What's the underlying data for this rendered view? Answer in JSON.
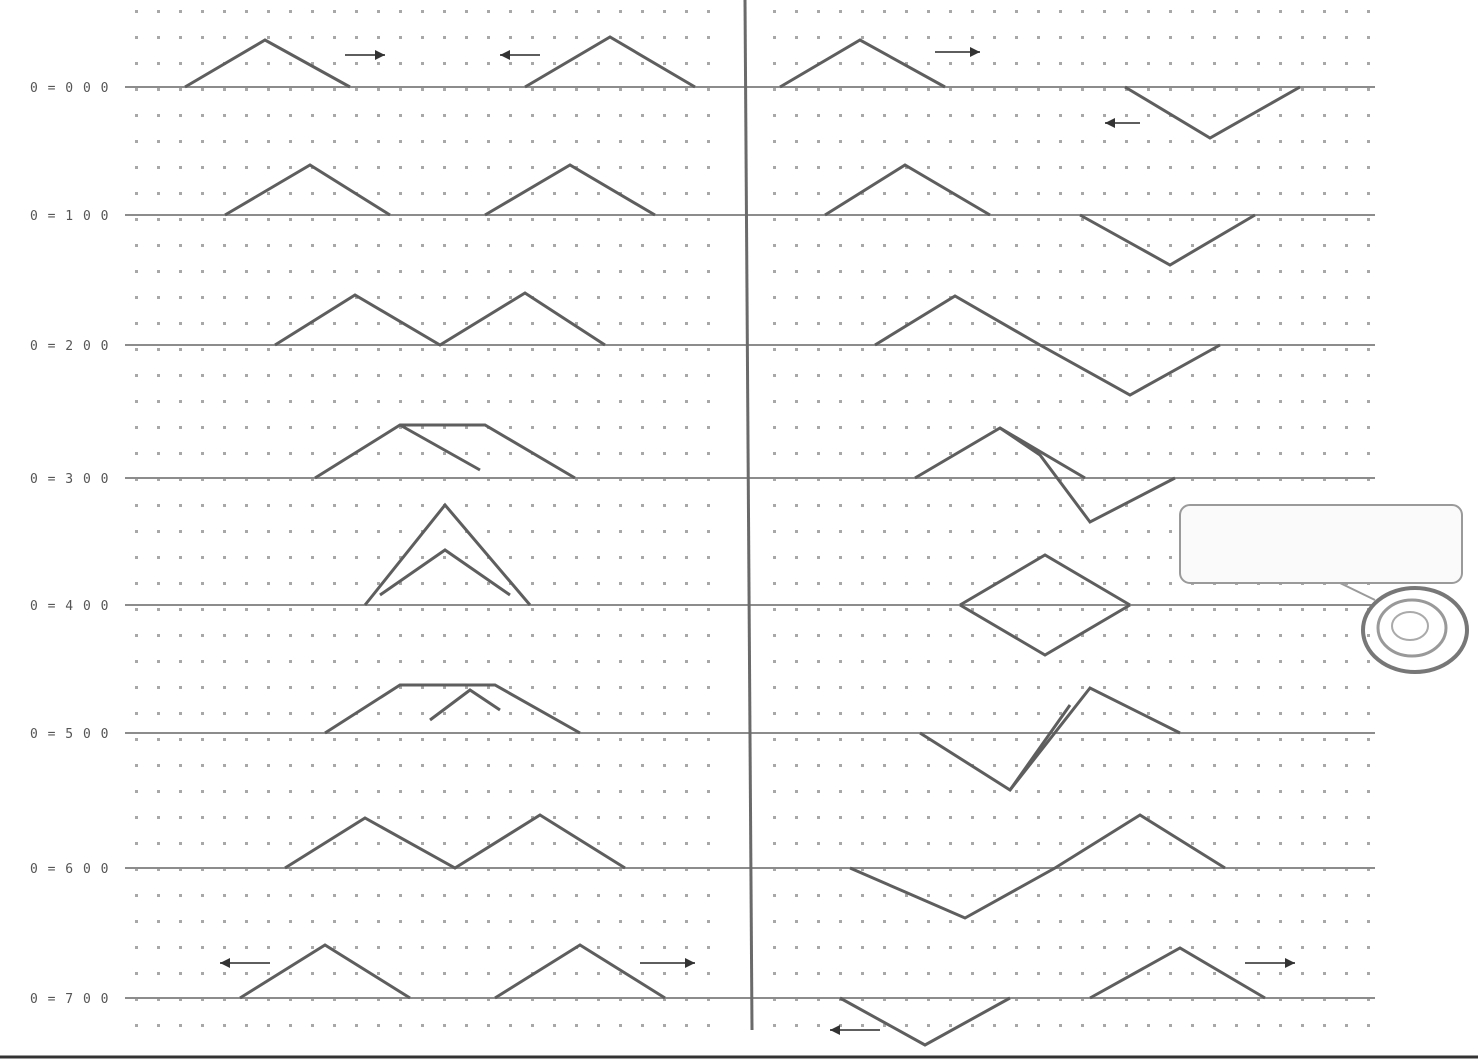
{
  "diagram": {
    "colors": {
      "background": "#ffffff",
      "dot": "#a8a8a8",
      "axis": "#8c8c8c",
      "wave": "#5e5e5e",
      "divider": "#6a6a6a"
    },
    "rows": [
      {
        "label": "0 = 0 0 0"
      },
      {
        "label": "0 = 1 0 0"
      },
      {
        "label": "0 = 2 0 0"
      },
      {
        "label": "0 = 3 0 0"
      },
      {
        "label": "0 = 4 0 0"
      },
      {
        "label": "0 = 5 0 0"
      },
      {
        "label": "0 = 6 0 0"
      },
      {
        "label": "0 = 7 0 0"
      }
    ],
    "note": {
      "lines": [
        "",
        "",
        ""
      ]
    },
    "footer_caption": ""
  }
}
